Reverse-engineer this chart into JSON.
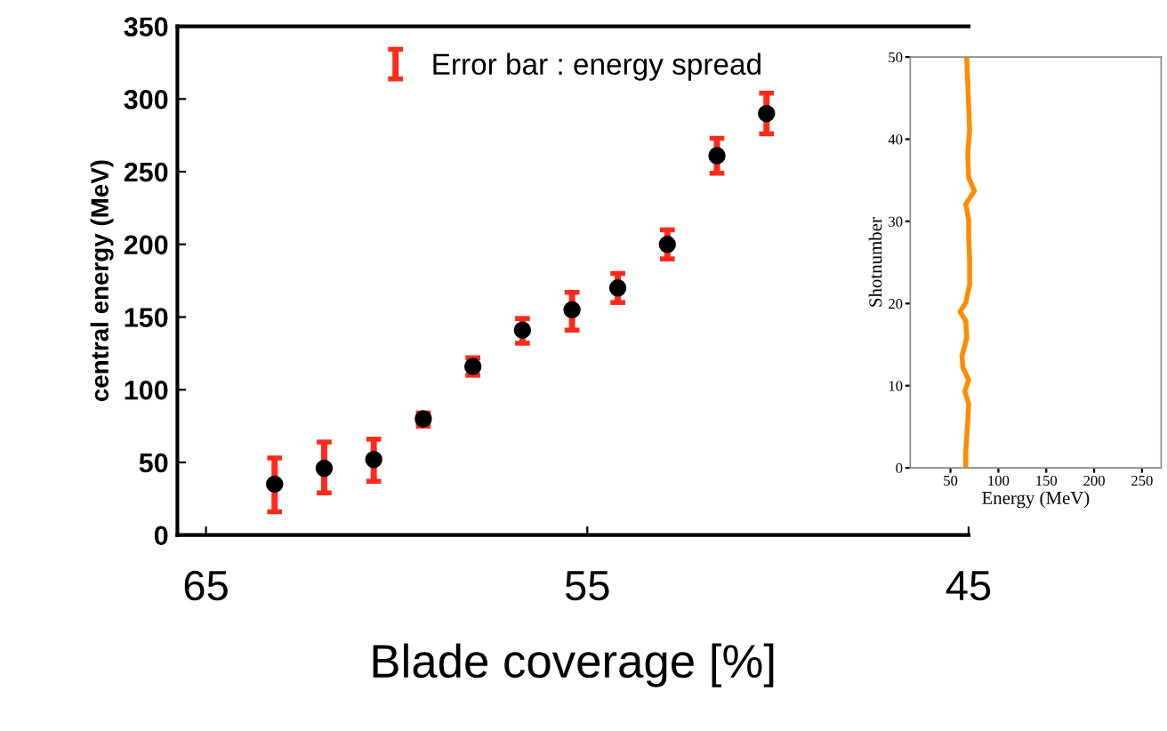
{
  "chart_data": [
    {
      "type": "scatter",
      "xlabel": "Blade coverage [%]",
      "ylabel": "central energy (MeV)",
      "x": [
        63.2,
        61.9,
        60.6,
        59.3,
        58.0,
        56.7,
        55.4,
        54.2,
        52.9,
        51.6,
        50.3
      ],
      "series": [
        {
          "name": "Error bar : energy spread",
          "color": "#000000",
          "values": [
            35,
            46,
            52,
            80,
            116,
            141,
            155,
            170,
            200,
            261,
            290
          ],
          "errors": [
            [
              16,
              53
            ],
            [
              29,
              64
            ],
            [
              37,
              66
            ],
            [
              75,
              84
            ],
            [
              110,
              122
            ],
            [
              132,
              149
            ],
            [
              141,
              167
            ],
            [
              160,
              180
            ],
            [
              190,
              210
            ],
            [
              249,
              273
            ],
            [
              276,
              304
            ]
          ]
        }
      ],
      "xlim": [
        65.75,
        45.0
      ],
      "xticks": [
        65,
        55,
        45
      ],
      "ylim": [
        0,
        350
      ],
      "yticks": [
        0,
        50,
        100,
        150,
        200,
        250,
        300,
        350
      ],
      "marker": "circle",
      "legend": "top",
      "grid": false
    },
    {
      "type": "line",
      "xlabel": "Energy (MeV)",
      "ylabel": "Shotnumber",
      "series": [
        {
          "color": "#ff8c00",
          "x": [
            66,
            66,
            68,
            69,
            65,
            69,
            63,
            62,
            67,
            66,
            60,
            66,
            70,
            70,
            69,
            69,
            66,
            75,
            69,
            68,
            70,
            69,
            68,
            67
          ],
          "values": [
            0,
            2,
            5.6,
            7.8,
            9.3,
            10.7,
            12.2,
            13.6,
            15.8,
            17.9,
            19,
            20.1,
            22.3,
            25.2,
            28.1,
            30.2,
            32.1,
            33.7,
            35.3,
            38.2,
            41.1,
            44,
            46.9,
            49.8
          ]
        }
      ],
      "xlim": [
        8,
        270
      ],
      "xticks": [
        50,
        100,
        150,
        200,
        250
      ],
      "ylim": [
        0,
        50
      ],
      "yticks": [
        0,
        10,
        20,
        30,
        40,
        50
      ],
      "marker": "none",
      "line_style": "solid",
      "grid": false
    }
  ]
}
